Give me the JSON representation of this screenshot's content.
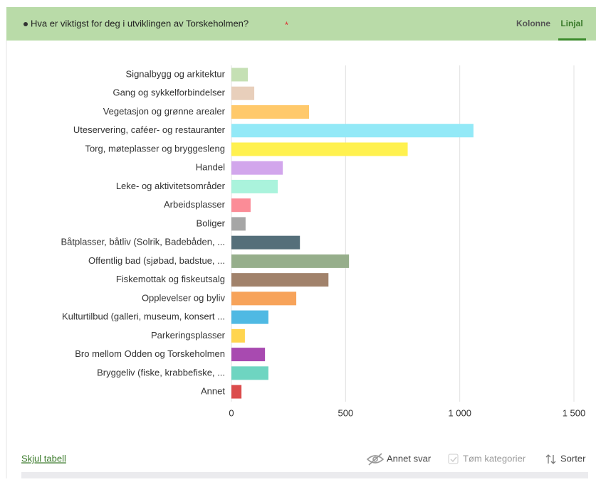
{
  "header": {
    "title": "Hva er viktigst for deg i utviklingen av Torskeholmen?",
    "required": "*",
    "tabs": [
      "Kolonne",
      "Linjal"
    ]
  },
  "chart_data": {
    "type": "bar",
    "categories": [
      "Signalbygg og arkitektur",
      "Gang og sykkelforbindelser",
      "Vegetasjon og grønne arealer",
      "Uteservering, caféer- og restauranter",
      "Torg, møteplasser og bryggesleng",
      "Handel",
      "Leke- og aktivitetsområder",
      "Arbeidsplasser",
      "Boliger",
      "Båtplasser, båtliv (Solrik, Badebåden, ...",
      "Offentlig bad (sjøbad, badstue, ...",
      "Fiskemottak og fiskeutsalg",
      "Opplevelser og byliv",
      "Kulturtilbud (galleri, museum, konsert ...",
      "Parkeringsplasser",
      "Bro mellom Odden og Torskeholmen",
      "Bryggeliv (fiske, krabbefiske, ...",
      "Annet"
    ],
    "values": [
      72,
      100,
      340,
      1060,
      772,
      225,
      203,
      84,
      62,
      300,
      515,
      425,
      284,
      162,
      59,
      147,
      162,
      44
    ],
    "colors": [
      "#c5e0b4",
      "#e8cfbb",
      "#ffc96b",
      "#93e9f7",
      "#fff14f",
      "#d2a6ec",
      "#aaf3dc",
      "#fb8c97",
      "#a6a6a6",
      "#556f7a",
      "#96ae8b",
      "#a1826b",
      "#f7a35a",
      "#4fb9e3",
      "#ffd54f",
      "#a84ab0",
      "#6ed5c1",
      "#db4c4c"
    ],
    "xlim": [
      0,
      1500
    ],
    "xticks": [
      0,
      500,
      {
        "value": 1000,
        "label": "1 000"
      },
      {
        "value": 1500,
        "label": "1 500"
      }
    ],
    "grid": true
  },
  "footer": {
    "link": "Skjul tabell",
    "other": "Annet svar",
    "empty": "Tøm kategorier",
    "sort": "Sorter"
  }
}
